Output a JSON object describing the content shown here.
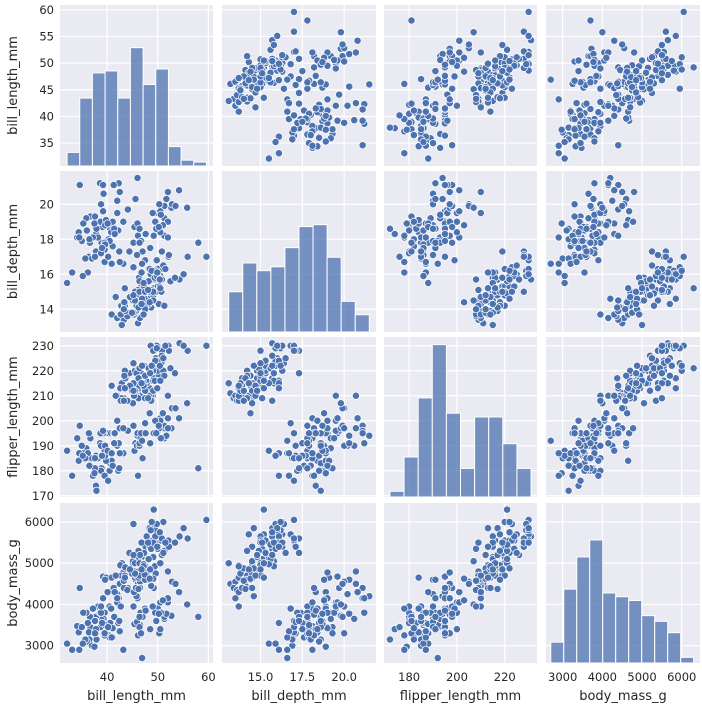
{
  "chart_data": {
    "type": "pairplot",
    "variables": [
      "bill_length_mm",
      "bill_depth_mm",
      "flipper_length_mm",
      "body_mass_g"
    ],
    "axis_labels": [
      "bill_length_mm",
      "bill_depth_mm",
      "flipper_length_mm",
      "body_mass_g"
    ],
    "ranges": [
      [
        30.7,
        60.9
      ],
      [
        12.7,
        21.9
      ],
      [
        169.5,
        233.5
      ],
      [
        2580,
        6460
      ]
    ],
    "ticks": [
      [
        35,
        40,
        45,
        50,
        55,
        60
      ],
      [
        14,
        16,
        18,
        20
      ],
      [
        170,
        180,
        190,
        200,
        210,
        220,
        230
      ],
      [
        3000,
        4000,
        5000,
        6000
      ]
    ],
    "x_ticks": [
      [
        40,
        50,
        60
      ],
      [
        15.0,
        17.5,
        20.0
      ],
      [
        180,
        200,
        220
      ],
      [
        3000,
        4000,
        5000,
        6000
      ]
    ],
    "x_tick_labels": [
      [
        "40",
        "50",
        "60"
      ],
      [
        "15.0",
        "17.5",
        "20.0"
      ],
      [
        "180",
        "200",
        "220"
      ],
      [
        "3000",
        "4000",
        "5000",
        "6000"
      ]
    ],
    "y_tick_labels": [
      [
        "35",
        "40",
        "45",
        "50",
        "55",
        "60"
      ],
      [
        "14",
        "16",
        "18",
        "20"
      ],
      [
        "170",
        "180",
        "190",
        "200",
        "210",
        "220",
        "230"
      ],
      [
        "3000",
        "4000",
        "5000",
        "6000"
      ]
    ],
    "grid": true,
    "colors": {
      "marker": "#4c72b0",
      "bar": "#4c72b0",
      "background": "#eaeaf2",
      "grid": "#ffffff"
    },
    "histograms": [
      {
        "variable": "bill_length_mm",
        "bin_range": [
          32.1,
          59.6
        ],
        "counts": [
          7,
          35,
          48,
          49,
          35,
          61,
          42,
          50,
          10,
          3,
          2
        ],
        "ylim": [
          0,
          83
        ]
      },
      {
        "variable": "bill_depth_mm",
        "bin_range": [
          13.1,
          21.5
        ],
        "counts": [
          21,
          36,
          32,
          34,
          44,
          55,
          56,
          39,
          16,
          9
        ],
        "ylim": [
          0,
          84
        ]
      },
      {
        "variable": "flipper_length_mm",
        "bin_range": [
          172,
          231
        ],
        "counts": [
          3,
          21,
          52,
          80,
          44,
          15,
          42,
          42,
          28,
          15
        ],
        "ylim": [
          0,
          84
        ]
      },
      {
        "variable": "body_mass_g",
        "bin_range": [
          2700,
          6300
        ],
        "counts": [
          11,
          39,
          56,
          65,
          37,
          35,
          33,
          25,
          22,
          16,
          3
        ],
        "ylim": [
          0,
          84.5
        ]
      }
    ],
    "points": [
      [
        39.1,
        18.7,
        181,
        3750
      ],
      [
        39.5,
        17.4,
        186,
        3800
      ],
      [
        40.3,
        18,
        195,
        3250
      ],
      [
        36.7,
        19.3,
        193,
        3450
      ],
      [
        39.3,
        20.6,
        190,
        3650
      ],
      [
        38.9,
        17.8,
        181,
        3625
      ],
      [
        39.2,
        19.6,
        195,
        4675
      ],
      [
        34.1,
        18.1,
        193,
        3475
      ],
      [
        42,
        20.2,
        190,
        4250
      ],
      [
        37.8,
        17.1,
        186,
        3300
      ],
      [
        37.8,
        17.3,
        180,
        3700
      ],
      [
        41.1,
        17.6,
        182,
        3200
      ],
      [
        38.6,
        21.2,
        191,
        3800
      ],
      [
        34.6,
        21.1,
        198,
        4400
      ],
      [
        36.6,
        17.8,
        185,
        3700
      ],
      [
        38.7,
        19,
        195,
        3450
      ],
      [
        42.5,
        20.7,
        197,
        4500
      ],
      [
        34.4,
        18.4,
        184,
        3325
      ],
      [
        46,
        21.5,
        194,
        4200
      ],
      [
        37.8,
        18.3,
        174,
        3400
      ],
      [
        37.7,
        18.7,
        180,
        3600
      ],
      [
        35.9,
        19.2,
        189,
        3800
      ],
      [
        38.2,
        18.1,
        185,
        3950
      ],
      [
        38.8,
        17.2,
        180,
        3800
      ],
      [
        35.3,
        18.9,
        187,
        3800
      ],
      [
        40.6,
        18.6,
        183,
        3550
      ],
      [
        40.5,
        17.9,
        187,
        3200
      ],
      [
        37.9,
        18.6,
        172,
        3150
      ],
      [
        40.5,
        18.9,
        180,
        3950
      ],
      [
        39.5,
        16.7,
        178,
        3250
      ],
      [
        37.2,
        18.1,
        178,
        3900
      ],
      [
        39.5,
        17.8,
        188,
        3300
      ],
      [
        40.9,
        18.9,
        184,
        3900
      ],
      [
        36.4,
        17,
        195,
        3325
      ],
      [
        39.2,
        21.1,
        196,
        4150
      ],
      [
        38.8,
        20,
        190,
        3950
      ],
      [
        42.2,
        18.5,
        180,
        3550
      ],
      [
        37.6,
        19.3,
        181,
        3300
      ],
      [
        39.8,
        19.1,
        184,
        4650
      ],
      [
        36.5,
        18,
        182,
        3150
      ],
      [
        40.8,
        18.4,
        195,
        3900
      ],
      [
        36,
        18.5,
        186,
        3100
      ],
      [
        44.1,
        19.7,
        196,
        4400
      ],
      [
        37,
        16.9,
        185,
        3000
      ],
      [
        39.6,
        18.8,
        190,
        4600
      ],
      [
        41.1,
        19,
        182,
        3425
      ],
      [
        37.5,
        18.9,
        179,
        2975
      ],
      [
        42.3,
        21.2,
        191,
        4150
      ],
      [
        39.6,
        17.7,
        186,
        3500
      ],
      [
        40.1,
        18.9,
        188,
        4300
      ],
      [
        35,
        17.9,
        190,
        3450
      ],
      [
        42,
        19.5,
        200,
        4050
      ],
      [
        34.5,
        18.1,
        187,
        2900
      ],
      [
        41.4,
        18.6,
        191,
        3700
      ],
      [
        39,
        17.5,
        186,
        3550
      ],
      [
        32.1,
        15.5,
        188,
        3050
      ],
      [
        33.1,
        16.1,
        178,
        2900
      ],
      [
        36.2,
        16.1,
        187,
        3550
      ],
      [
        43.2,
        19,
        197,
        4775
      ],
      [
        35.7,
        16.9,
        185,
        3150
      ],
      [
        41.3,
        21.1,
        195,
        4400
      ],
      [
        37.6,
        17,
        185,
        3600
      ],
      [
        41.5,
        18.3,
        195,
        4300
      ],
      [
        40.2,
        17,
        176,
        3450
      ],
      [
        35.2,
        15.9,
        186,
        3050
      ],
      [
        45.6,
        20.3,
        191,
        4600
      ],
      [
        46.5,
        17.9,
        192,
        3500
      ],
      [
        50,
        19.5,
        196,
        3900
      ],
      [
        51.3,
        19.2,
        193,
        3650
      ],
      [
        45.4,
        18.7,
        188,
        3525
      ],
      [
        52.7,
        19.8,
        197,
        3725
      ],
      [
        45.2,
        17.8,
        198,
        3950
      ],
      [
        46.1,
        18.2,
        178,
        3250
      ],
      [
        51.3,
        18.2,
        197,
        3750
      ],
      [
        46,
        18.9,
        195,
        4150
      ],
      [
        51.3,
        19.9,
        198,
        3700
      ],
      [
        46.6,
        17.8,
        193,
        3800
      ],
      [
        51.7,
        20.3,
        194,
        3775
      ],
      [
        47,
        17.3,
        185,
        3700
      ],
      [
        52,
        18.1,
        201,
        4050
      ],
      [
        45.9,
        17.1,
        190,
        3575
      ],
      [
        50.5,
        19.6,
        201,
        4050
      ],
      [
        50.3,
        20,
        197,
        3300
      ],
      [
        58,
        17.8,
        181,
        3700
      ],
      [
        46.4,
        18.6,
        190,
        3450
      ],
      [
        49.2,
        18.2,
        195,
        4400
      ],
      [
        42.4,
        17.3,
        181,
        3600
      ],
      [
        48.5,
        17.5,
        191,
        3400
      ],
      [
        43.2,
        16.6,
        187,
        2900
      ],
      [
        50.6,
        19.4,
        193,
        3800
      ],
      [
        46.7,
        17.9,
        195,
        3300
      ],
      [
        52,
        19,
        197,
        4150
      ],
      [
        50.5,
        18.4,
        200,
        3400
      ],
      [
        49.5,
        19,
        200,
        3800
      ],
      [
        46.4,
        17.8,
        191,
        3700
      ],
      [
        52.8,
        20,
        205,
        4550
      ],
      [
        40.9,
        16.6,
        187,
        3200
      ],
      [
        54.2,
        20.8,
        201,
        4300
      ],
      [
        42.5,
        16.7,
        187,
        3350
      ],
      [
        51,
        18.8,
        203,
        4100
      ],
      [
        49.7,
        18.6,
        195,
        3600
      ],
      [
        47.5,
        16.8,
        199,
        3900
      ],
      [
        47.6,
        18.3,
        195,
        3850
      ],
      [
        52,
        20.7,
        210,
        4800
      ],
      [
        46.9,
        16.6,
        192,
        2700
      ],
      [
        53.5,
        19.9,
        205,
        4500
      ],
      [
        49,
        19.5,
        210,
        3950
      ],
      [
        55.8,
        19.8,
        207,
        4000
      ],
      [
        50.2,
        18.7,
        198,
        3775
      ],
      [
        46.1,
        13.2,
        211,
        4500
      ],
      [
        50,
        16.3,
        230,
        5700
      ],
      [
        48.7,
        14.1,
        210,
        4450
      ],
      [
        50,
        15.2,
        218,
        5700
      ],
      [
        47.6,
        14.5,
        215,
        5400
      ],
      [
        46.5,
        13.5,
        210,
        4550
      ],
      [
        45.4,
        14.6,
        211,
        4800
      ],
      [
        46.7,
        15.3,
        219,
        5200
      ],
      [
        43.3,
        13.4,
        209,
        4400
      ],
      [
        46.8,
        15.4,
        215,
        5150
      ],
      [
        40.9,
        13.7,
        214,
        4650
      ],
      [
        49,
        16.1,
        216,
        5550
      ],
      [
        45.5,
        13.7,
        214,
        4650
      ],
      [
        48.4,
        14.6,
        213,
        5850
      ],
      [
        45.8,
        14.6,
        210,
        4200
      ],
      [
        49.3,
        15.7,
        217,
        5850
      ],
      [
        42,
        13.5,
        210,
        4150
      ],
      [
        49.2,
        15.2,
        221,
        6300
      ],
      [
        46.2,
        14.5,
        209,
        4800
      ],
      [
        48.7,
        15.1,
        222,
        5350
      ],
      [
        50.2,
        14.3,
        218,
        5700
      ],
      [
        45.1,
        14.5,
        215,
        5000
      ],
      [
        46.5,
        14.5,
        213,
        4400
      ],
      [
        46.3,
        15.8,
        215,
        5050
      ],
      [
        42.9,
        13.1,
        215,
        5000
      ],
      [
        46.1,
        15.1,
        215,
        5100
      ],
      [
        47.8,
        15,
        215,
        5650
      ],
      [
        48.2,
        14.3,
        210,
        4600
      ],
      [
        50,
        15.3,
        220,
        5550
      ],
      [
        47.3,
        15.3,
        222,
        5250
      ],
      [
        42.8,
        14.2,
        209,
        4700
      ],
      [
        45.1,
        14.5,
        207,
        5050
      ],
      [
        59.6,
        17,
        230,
        6050
      ],
      [
        49.1,
        14.8,
        220,
        5150
      ],
      [
        48.4,
        16.3,
        220,
        5400
      ],
      [
        42.6,
        13.7,
        213,
        4950
      ],
      [
        44.4,
        17.3,
        219,
        5250
      ],
      [
        44,
        13.6,
        208,
        4350
      ],
      [
        48.7,
        15.7,
        208,
        5350
      ],
      [
        42.7,
        13.7,
        208,
        3950
      ],
      [
        49.6,
        16,
        225,
        5700
      ],
      [
        45.3,
        13.7,
        210,
        4300
      ],
      [
        49.6,
        15,
        216,
        4750
      ],
      [
        50.5,
        15.9,
        222,
        5550
      ],
      [
        43.6,
        13.9,
        217,
        4900
      ],
      [
        45.5,
        15,
        220,
        5000
      ],
      [
        50.4,
        15.3,
        224,
        5550
      ],
      [
        46.2,
        14.9,
        221,
        5300
      ],
      [
        45.7,
        13.9,
        214,
        4400
      ],
      [
        54.3,
        15.7,
        231,
        5650
      ],
      [
        45.8,
        14.2,
        219,
        4700
      ],
      [
        49.8,
        16.8,
        230,
        5700
      ],
      [
        46.2,
        14.4,
        214,
        4650
      ],
      [
        49.5,
        16.2,
        229,
        5800
      ],
      [
        43.5,
        14.2,
        220,
        4700
      ],
      [
        50.7,
        15,
        223,
        5550
      ],
      [
        47.7,
        15,
        216,
        4750
      ],
      [
        46.4,
        15.6,
        221,
        5000
      ],
      [
        48.2,
        15.6,
        221,
        5100
      ],
      [
        46.5,
        14.8,
        217,
        5200
      ],
      [
        46.4,
        15,
        216,
        4700
      ],
      [
        48.6,
        16,
        230,
        5800
      ],
      [
        47.5,
        14.2,
        209,
        4600
      ],
      [
        51.1,
        16.3,
        220,
        6000
      ],
      [
        45.2,
        13.8,
        215,
        4750
      ],
      [
        45.2,
        16.4,
        223,
        5950
      ],
      [
        49.1,
        14.5,
        212,
        4625
      ],
      [
        52.5,
        15.6,
        221,
        5450
      ],
      [
        47.4,
        14.6,
        212,
        4725
      ],
      [
        50,
        15.9,
        224,
        5350
      ],
      [
        44.9,
        13.8,
        212,
        4750
      ],
      [
        50.8,
        17.3,
        228,
        5600
      ],
      [
        43.4,
        14.4,
        218,
        4600
      ],
      [
        51.3,
        14.2,
        218,
        5300
      ],
      [
        47.5,
        14,
        212,
        4875
      ],
      [
        52.1,
        17,
        230,
        5550
      ],
      [
        47.5,
        15,
        218,
        4950
      ],
      [
        52.2,
        17.1,
        228,
        5400
      ],
      [
        45.5,
        14.5,
        212,
        4750
      ],
      [
        49.5,
        16.1,
        224,
        5650
      ],
      [
        44.5,
        14.7,
        214,
        4850
      ],
      [
        50.8,
        15.7,
        226,
        5200
      ],
      [
        49.4,
        15.8,
        216,
        4925
      ],
      [
        46.9,
        14.6,
        222,
        4875
      ],
      [
        48.4,
        14.4,
        203,
        4625
      ],
      [
        51.1,
        16.5,
        225,
        5250
      ],
      [
        48.5,
        15,
        219,
        4850
      ],
      [
        55.9,
        17,
        228,
        5600
      ],
      [
        47.2,
        15.5,
        215,
        4975
      ],
      [
        49.1,
        15,
        228,
        5500
      ],
      [
        46.8,
        16.1,
        215,
        5500
      ],
      [
        41.7,
        14.7,
        210,
        4700
      ],
      [
        53.4,
        15.8,
        219,
        5500
      ],
      [
        43.3,
        14,
        208,
        4575
      ],
      [
        48.1,
        15.1,
        209,
        5500
      ],
      [
        50.5,
        15.2,
        216,
        5000
      ],
      [
        49.8,
        15.9,
        229,
        5950
      ],
      [
        43.5,
        15.2,
        213,
        4650
      ],
      [
        51.5,
        16.3,
        230,
        5500
      ],
      [
        46.2,
        14.1,
        217,
        4375
      ],
      [
        55.1,
        16,
        230,
        5850
      ],
      [
        48.8,
        16.2,
        222,
        6000
      ],
      [
        47.2,
        13.7,
        214,
        4925
      ],
      [
        46.8,
        14.3,
        215,
        4850
      ],
      [
        50.4,
        15.7,
        222,
        5750
      ],
      [
        45.2,
        14.8,
        212,
        5200
      ],
      [
        49.9,
        16.1,
        213,
        5400
      ]
    ]
  }
}
